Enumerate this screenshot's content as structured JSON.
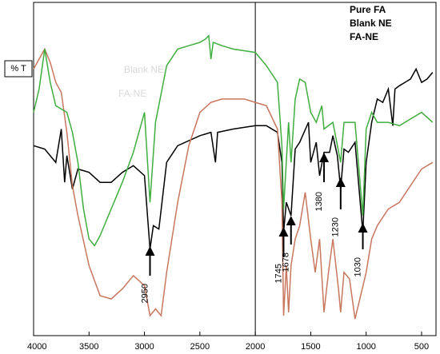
{
  "chart_data": {
    "type": "line",
    "ylabel": "% T",
    "xlim": [
      4000,
      370
    ],
    "ylim": [
      0,
      100
    ],
    "xticks": [
      4000,
      3500,
      3000,
      2500,
      2000,
      1500,
      1000,
      500
    ],
    "vlines": [
      2000
    ],
    "legend": "top-right",
    "ghost_labels": [
      "Blank NE",
      "FA-NE"
    ],
    "series": [
      {
        "name": "Pure FA",
        "color": "#000000",
        "x": [
          4000,
          3900,
          3800,
          3750,
          3720,
          3700,
          3650,
          3600,
          3500,
          3400,
          3300,
          3200,
          3100,
          3000,
          2950,
          2920,
          2870,
          2800,
          2700,
          2500,
          2400,
          2360,
          2340,
          2200,
          2000,
          1900,
          1800,
          1760,
          1745,
          1720,
          1678,
          1640,
          1600,
          1520,
          1500,
          1450,
          1420,
          1380,
          1330,
          1300,
          1260,
          1230,
          1200,
          1160,
          1100,
          1030,
          1000,
          950,
          900,
          850,
          800,
          760,
          740,
          700,
          650,
          600,
          550,
          500,
          450,
          400
        ],
        "values": [
          57,
          56,
          52,
          62,
          46,
          54,
          44,
          50,
          49,
          46,
          46,
          49,
          51,
          48,
          26,
          33,
          32,
          52,
          57,
          60,
          61,
          52,
          61,
          62,
          63,
          63,
          61,
          52,
          31,
          40,
          36,
          56,
          58,
          64,
          52,
          58,
          48,
          55,
          55,
          60,
          54,
          44,
          56,
          55,
          58,
          31,
          52,
          64,
          71,
          70,
          74,
          63,
          74,
          75,
          76,
          77,
          80,
          76,
          77,
          79
        ]
      },
      {
        "name": "Blank NE",
        "color": "#c8775e",
        "x": [
          4000,
          3950,
          3900,
          3850,
          3800,
          3750,
          3700,
          3650,
          3600,
          3500,
          3400,
          3300,
          3200,
          3100,
          3000,
          2950,
          2900,
          2850,
          2800,
          2700,
          2600,
          2500,
          2400,
          2300,
          2200,
          2100,
          2000,
          1900,
          1800,
          1760,
          1745,
          1720,
          1700,
          1678,
          1640,
          1600,
          1550,
          1500,
          1460,
          1420,
          1380,
          1340,
          1300,
          1250,
          1230,
          1200,
          1150,
          1100,
          1050,
          1000,
          950,
          900,
          800,
          700,
          600,
          500,
          400
        ],
        "values": [
          80,
          83,
          86,
          82,
          76,
          73,
          61,
          45,
          36,
          21,
          12,
          11,
          14,
          18,
          15,
          6,
          8,
          6,
          19,
          40,
          57,
          67,
          70,
          71,
          71,
          71,
          70,
          69,
          62,
          40,
          6,
          21,
          7,
          21,
          29,
          33,
          43,
          29,
          19,
          29,
          7,
          19,
          29,
          14,
          7,
          19,
          17,
          5,
          12,
          19,
          29,
          33,
          38,
          40,
          45,
          50,
          52
        ]
      },
      {
        "name": "FA-NE",
        "color": "#3fae3f",
        "x": [
          4000,
          3950,
          3900,
          3850,
          3800,
          3700,
          3650,
          3600,
          3550,
          3500,
          3450,
          3400,
          3300,
          3200,
          3100,
          3000,
          2950,
          2900,
          2800,
          2700,
          2600,
          2500,
          2450,
          2420,
          2400,
          2380,
          2300,
          2200,
          2000,
          1900,
          1800,
          1760,
          1745,
          1700,
          1678,
          1640,
          1600,
          1550,
          1500,
          1450,
          1400,
          1380,
          1300,
          1230,
          1200,
          1100,
          1030,
          1000,
          950,
          900,
          800,
          700,
          600,
          500,
          400
        ],
        "values": [
          67,
          74,
          86,
          76,
          69,
          67,
          61,
          52,
          38,
          29,
          27,
          30,
          38,
          46,
          55,
          67,
          40,
          64,
          81,
          86,
          87,
          88,
          89,
          90,
          83,
          88,
          87,
          86,
          85,
          81,
          76,
          57,
          38,
          64,
          52,
          71,
          77,
          76,
          67,
          64,
          69,
          62,
          64,
          52,
          64,
          64,
          36,
          62,
          67,
          64,
          64,
          63,
          65,
          67,
          64
        ]
      }
    ],
    "annotations": [
      {
        "label": "2950",
        "x": 2950
      },
      {
        "label": "1745",
        "x": 1745
      },
      {
        "label": "1678",
        "x": 1678
      },
      {
        "label": "1380",
        "x": 1380
      },
      {
        "label": "1230",
        "x": 1230
      },
      {
        "label": "1030",
        "x": 1030
      }
    ]
  }
}
